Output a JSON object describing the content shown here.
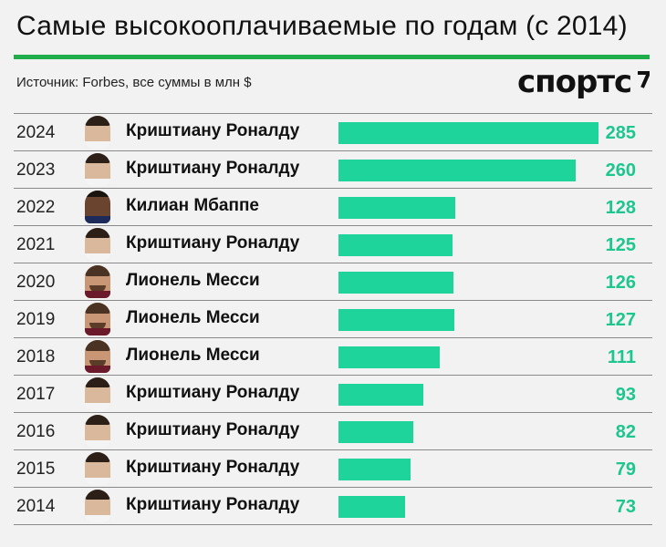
{
  "title": "Самые высокооплачиваемые по годам (с 2014)",
  "source": "Источник: Forbes, все суммы в млн $",
  "logo": "спортс",
  "colors": {
    "accent_line": "#1fae4b",
    "bar": "#1ed49a",
    "value": "#1ec68f"
  },
  "chart_data": {
    "type": "bar",
    "orientation": "horizontal",
    "unit": "млн $",
    "max": 285,
    "rows": [
      {
        "year": "2024",
        "name": "Криштиану Роналду",
        "value": 285,
        "avatar": "ronaldo"
      },
      {
        "year": "2023",
        "name": "Криштиану Роналду",
        "value": 260,
        "avatar": "ronaldo"
      },
      {
        "year": "2022",
        "name": "Килиан Мбаппе",
        "value": 128,
        "avatar": "mbappe"
      },
      {
        "year": "2021",
        "name": "Криштиану Роналду",
        "value": 125,
        "avatar": "ronaldo"
      },
      {
        "year": "2020",
        "name": "Лионель Месси",
        "value": 126,
        "avatar": "messi"
      },
      {
        "year": "2019",
        "name": "Лионель Месси",
        "value": 127,
        "avatar": "messi"
      },
      {
        "year": "2018",
        "name": "Лионель Месси",
        "value": 111,
        "avatar": "messi"
      },
      {
        "year": "2017",
        "name": "Криштиану Роналду",
        "value": 93,
        "avatar": "ronaldo"
      },
      {
        "year": "2016",
        "name": "Криштиану Роналду",
        "value": 82,
        "avatar": "ronaldo"
      },
      {
        "year": "2015",
        "name": "Криштиану Роналду",
        "value": 79,
        "avatar": "ronaldo"
      },
      {
        "year": "2014",
        "name": "Криштиану Роналду",
        "value": 73,
        "avatar": "ronaldo"
      }
    ]
  }
}
